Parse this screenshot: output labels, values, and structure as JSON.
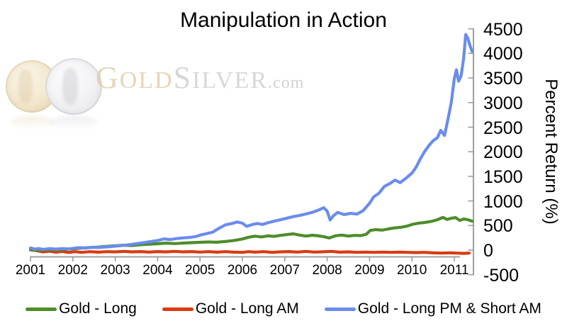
{
  "watermark": {
    "gold_initial": "G",
    "gold_rest": "OLD",
    "silver_initial": "S",
    "silver_rest": "ILVER",
    "domain_suffix": ".com",
    "gold_color": "#cda969",
    "silver_color": "#afafb6"
  },
  "chart_data": {
    "type": "line",
    "title": "Manipulation in Action",
    "xlabel": "",
    "ylabel": "Percent Return (%)",
    "x_ticks": [
      2001,
      2002,
      2003,
      2004,
      2005,
      2006,
      2007,
      2008,
      2009,
      2010,
      2011
    ],
    "y_ticks": [
      -500,
      0,
      500,
      1000,
      1500,
      2000,
      2500,
      3000,
      3500,
      4000,
      4500
    ],
    "xlim": [
      2001,
      2011.45
    ],
    "ylim": [
      -500,
      4500
    ],
    "grid": false,
    "legend_position": "bottom",
    "axis_color": "#9e9e9e",
    "series": [
      {
        "name": "Gold - Long",
        "color": "#4E8C2A",
        "points": [
          [
            2001,
            8
          ],
          [
            2001.2,
            2
          ],
          [
            2001.4,
            10
          ],
          [
            2001.6,
            6
          ],
          [
            2001.8,
            16
          ],
          [
            2002,
            28
          ],
          [
            2002.2,
            42
          ],
          [
            2002.4,
            52
          ],
          [
            2002.6,
            62
          ],
          [
            2002.8,
            76
          ],
          [
            2003,
            90
          ],
          [
            2003.2,
            100
          ],
          [
            2003.4,
            94
          ],
          [
            2003.6,
            110
          ],
          [
            2003.8,
            120
          ],
          [
            2004,
            130
          ],
          [
            2004.2,
            142
          ],
          [
            2004.4,
            132
          ],
          [
            2004.6,
            142
          ],
          [
            2004.8,
            152
          ],
          [
            2005,
            158
          ],
          [
            2005.2,
            166
          ],
          [
            2005.4,
            160
          ],
          [
            2005.6,
            176
          ],
          [
            2005.8,
            196
          ],
          [
            2006,
            226
          ],
          [
            2006.15,
            262
          ],
          [
            2006.3,
            284
          ],
          [
            2006.45,
            268
          ],
          [
            2006.6,
            290
          ],
          [
            2006.75,
            280
          ],
          [
            2006.9,
            300
          ],
          [
            2007.05,
            315
          ],
          [
            2007.2,
            332
          ],
          [
            2007.35,
            306
          ],
          [
            2007.5,
            286
          ],
          [
            2007.65,
            302
          ],
          [
            2007.8,
            290
          ],
          [
            2007.92,
            272
          ],
          [
            2008.05,
            246
          ],
          [
            2008.2,
            292
          ],
          [
            2008.35,
            306
          ],
          [
            2008.5,
            286
          ],
          [
            2008.65,
            300
          ],
          [
            2008.8,
            296
          ],
          [
            2008.92,
            322
          ],
          [
            2009.02,
            400
          ],
          [
            2009.15,
            416
          ],
          [
            2009.3,
            406
          ],
          [
            2009.45,
            432
          ],
          [
            2009.6,
            452
          ],
          [
            2009.75,
            466
          ],
          [
            2009.9,
            492
          ],
          [
            2010,
            522
          ],
          [
            2010.15,
            546
          ],
          [
            2010.3,
            562
          ],
          [
            2010.45,
            582
          ],
          [
            2010.6,
            618
          ],
          [
            2010.73,
            665
          ],
          [
            2010.83,
            622
          ],
          [
            2010.93,
            648
          ],
          [
            2011.03,
            662
          ],
          [
            2011.13,
            602
          ],
          [
            2011.22,
            632
          ],
          [
            2011.32,
            618
          ],
          [
            2011.42,
            588
          ]
        ]
      },
      {
        "name": "Gold - Long AM",
        "color": "#D93B12",
        "points": [
          [
            2001,
            5
          ],
          [
            2001.15,
            -12
          ],
          [
            2001.3,
            -38
          ],
          [
            2001.45,
            -22
          ],
          [
            2001.6,
            -42
          ],
          [
            2001.75,
            -28
          ],
          [
            2001.9,
            -48
          ],
          [
            2002.05,
            -32
          ],
          [
            2002.2,
            -46
          ],
          [
            2002.4,
            -32
          ],
          [
            2002.6,
            -42
          ],
          [
            2002.8,
            -32
          ],
          [
            2003,
            -36
          ],
          [
            2003.2,
            -26
          ],
          [
            2003.4,
            -36
          ],
          [
            2003.6,
            -30
          ],
          [
            2003.8,
            -40
          ],
          [
            2004,
            -30
          ],
          [
            2004.2,
            -36
          ],
          [
            2004.4,
            -26
          ],
          [
            2004.6,
            -36
          ],
          [
            2004.8,
            -30
          ],
          [
            2005,
            -40
          ],
          [
            2005.2,
            -32
          ],
          [
            2005.4,
            -42
          ],
          [
            2005.6,
            -32
          ],
          [
            2005.8,
            -42
          ],
          [
            2006,
            -46
          ],
          [
            2006.15,
            -32
          ],
          [
            2006.3,
            -42
          ],
          [
            2006.5,
            -32
          ],
          [
            2006.7,
            -46
          ],
          [
            2006.9,
            -36
          ],
          [
            2007.1,
            -30
          ],
          [
            2007.3,
            -40
          ],
          [
            2007.5,
            -26
          ],
          [
            2007.7,
            -40
          ],
          [
            2007.9,
            -34
          ],
          [
            2008.1,
            -26
          ],
          [
            2008.3,
            -42
          ],
          [
            2008.5,
            -36
          ],
          [
            2008.7,
            -46
          ],
          [
            2008.9,
            -40
          ],
          [
            2009.1,
            -46
          ],
          [
            2009.3,
            -40
          ],
          [
            2009.5,
            -46
          ],
          [
            2009.7,
            -42
          ],
          [
            2009.9,
            -46
          ],
          [
            2010.1,
            -50
          ],
          [
            2010.3,
            -46
          ],
          [
            2010.5,
            -56
          ],
          [
            2010.7,
            -60
          ],
          [
            2010.9,
            -56
          ],
          [
            2011.1,
            -62
          ],
          [
            2011.22,
            -66
          ],
          [
            2011.35,
            -60
          ]
        ]
      },
      {
        "name": "Gold - Long PM & Short AM",
        "color": "#6A8CEE",
        "points": [
          [
            2001,
            45
          ],
          [
            2001.1,
            20
          ],
          [
            2001.2,
            32
          ],
          [
            2001.3,
            15
          ],
          [
            2001.45,
            30
          ],
          [
            2001.6,
            20
          ],
          [
            2001.75,
            32
          ],
          [
            2001.9,
            25
          ],
          [
            2002,
            35
          ],
          [
            2002.15,
            50
          ],
          [
            2002.3,
            42
          ],
          [
            2002.45,
            58
          ],
          [
            2002.6,
            52
          ],
          [
            2002.75,
            64
          ],
          [
            2002.9,
            72
          ],
          [
            2003,
            80
          ],
          [
            2003.2,
            96
          ],
          [
            2003.4,
            118
          ],
          [
            2003.6,
            142
          ],
          [
            2003.8,
            168
          ],
          [
            2004,
            195
          ],
          [
            2004.15,
            228
          ],
          [
            2004.3,
            215
          ],
          [
            2004.45,
            235
          ],
          [
            2004.6,
            248
          ],
          [
            2004.75,
            258
          ],
          [
            2004.9,
            275
          ],
          [
            2005,
            305
          ],
          [
            2005.15,
            335
          ],
          [
            2005.3,
            365
          ],
          [
            2005.45,
            445
          ],
          [
            2005.6,
            515
          ],
          [
            2005.75,
            540
          ],
          [
            2005.88,
            572
          ],
          [
            2006,
            548
          ],
          [
            2006.1,
            482
          ],
          [
            2006.22,
            518
          ],
          [
            2006.35,
            542
          ],
          [
            2006.48,
            522
          ],
          [
            2006.6,
            556
          ],
          [
            2006.75,
            588
          ],
          [
            2006.9,
            618
          ],
          [
            2007.05,
            650
          ],
          [
            2007.2,
            682
          ],
          [
            2007.35,
            705
          ],
          [
            2007.5,
            735
          ],
          [
            2007.65,
            768
          ],
          [
            2007.8,
            815
          ],
          [
            2007.92,
            862
          ],
          [
            2008,
            792
          ],
          [
            2008.07,
            612
          ],
          [
            2008.15,
            702
          ],
          [
            2008.25,
            766
          ],
          [
            2008.4,
            722
          ],
          [
            2008.55,
            748
          ],
          [
            2008.7,
            732
          ],
          [
            2008.85,
            802
          ],
          [
            2009,
            952
          ],
          [
            2009.1,
            1085
          ],
          [
            2009.22,
            1155
          ],
          [
            2009.35,
            1295
          ],
          [
            2009.5,
            1365
          ],
          [
            2009.6,
            1425
          ],
          [
            2009.72,
            1372
          ],
          [
            2009.85,
            1455
          ],
          [
            2010,
            1565
          ],
          [
            2010.1,
            1690
          ],
          [
            2010.2,
            1860
          ],
          [
            2010.3,
            2005
          ],
          [
            2010.4,
            2125
          ],
          [
            2010.5,
            2225
          ],
          [
            2010.6,
            2285
          ],
          [
            2010.68,
            2435
          ],
          [
            2010.77,
            2330
          ],
          [
            2010.85,
            2660
          ],
          [
            2010.93,
            3010
          ],
          [
            2011,
            3490
          ],
          [
            2011.05,
            3665
          ],
          [
            2011.1,
            3435
          ],
          [
            2011.16,
            3545
          ],
          [
            2011.22,
            3905
          ],
          [
            2011.27,
            4385
          ],
          [
            2011.32,
            4305
          ],
          [
            2011.37,
            4160
          ],
          [
            2011.42,
            4040
          ]
        ]
      }
    ]
  }
}
